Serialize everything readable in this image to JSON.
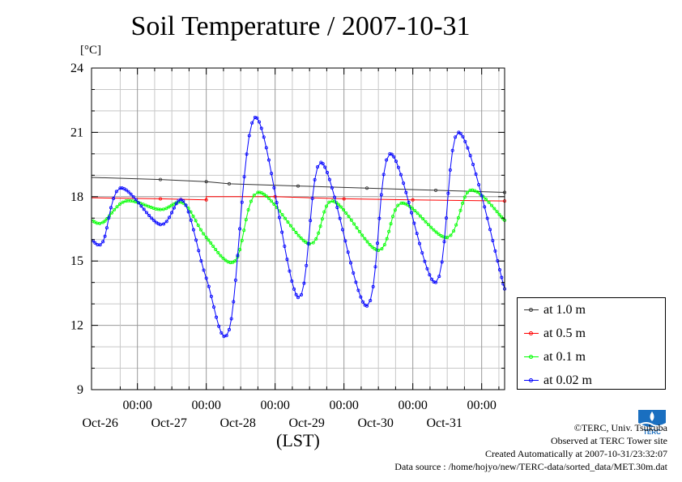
{
  "chart_data": {
    "type": "line",
    "title": "Soil Temperature / 2007-10-31",
    "ylabel": "[°C]",
    "xlabel": "(LST)",
    "ylim": [
      9,
      24
    ],
    "yticks": [
      9,
      12,
      15,
      18,
      21,
      24
    ],
    "x_range_days": [
      "2007-10-25 08:00",
      "2007-10-31 08:00"
    ],
    "xticks": [
      {
        "date": "2007-10-26 00:00",
        "time": "00:00",
        "day": "Oct-26"
      },
      {
        "date": "2007-10-27 00:00",
        "time": "00:00",
        "day": "Oct-27"
      },
      {
        "date": "2007-10-28 00:00",
        "time": "00:00",
        "day": "Oct-28"
      },
      {
        "date": "2007-10-29 00:00",
        "time": "00:00",
        "day": "Oct-29"
      },
      {
        "date": "2007-10-30 00:00",
        "time": "00:00",
        "day": "Oct-30"
      },
      {
        "date": "2007-10-31 00:00",
        "time": "00:00",
        "day": "Oct-31"
      }
    ],
    "grid": true,
    "legend_position": "right",
    "series": [
      {
        "name": "at 1.0 m",
        "color": "#333333",
        "points": [
          [
            "2007-10-25 08:00",
            18.9
          ],
          [
            "2007-10-26 08:00",
            18.8
          ],
          [
            "2007-10-27 00:00",
            18.7
          ],
          [
            "2007-10-27 08:00",
            18.6
          ],
          [
            "2007-10-28 08:00",
            18.5
          ],
          [
            "2007-10-29 08:00",
            18.4
          ],
          [
            "2007-10-30 08:00",
            18.3
          ],
          [
            "2007-10-31 08:00",
            18.2
          ]
        ]
      },
      {
        "name": "at 0.5 m",
        "color": "#ff0000",
        "points": [
          [
            "2007-10-25 08:00",
            17.95
          ],
          [
            "2007-10-26 08:00",
            17.9
          ],
          [
            "2007-10-27 00:00",
            17.85
          ],
          [
            "2007-10-27 00:01",
            18.0
          ],
          [
            "2007-10-28 00:00",
            18.0
          ],
          [
            "2007-10-29 00:00",
            17.9
          ],
          [
            "2007-10-30 00:00",
            17.85
          ],
          [
            "2007-10-31 08:00",
            17.8
          ]
        ]
      },
      {
        "name": "at 0.1 m",
        "color": "#00ff00",
        "points": [
          [
            "2007-10-25 08:00",
            16.9
          ],
          [
            "2007-10-25 12:00",
            16.8
          ],
          [
            "2007-10-25 20:00",
            17.8
          ],
          [
            "2007-10-26 08:00",
            17.4
          ],
          [
            "2007-10-26 16:00",
            17.7
          ],
          [
            "2007-10-27 00:00",
            16.1
          ],
          [
            "2007-10-27 10:00",
            15.0
          ],
          [
            "2007-10-27 18:00",
            18.2
          ],
          [
            "2007-10-28 12:00",
            15.8
          ],
          [
            "2007-10-28 20:00",
            17.8
          ],
          [
            "2007-10-29 12:00",
            15.5
          ],
          [
            "2007-10-29 20:00",
            17.7
          ],
          [
            "2007-10-30 12:00",
            16.1
          ],
          [
            "2007-10-30 20:00",
            18.3
          ],
          [
            "2007-10-31 08:00",
            16.9
          ]
        ]
      },
      {
        "name": "at 0.02 m",
        "color": "#0000ff",
        "points": [
          [
            "2007-10-25 08:00",
            16.0
          ],
          [
            "2007-10-25 12:00",
            15.9
          ],
          [
            "2007-10-25 18:00",
            18.4
          ],
          [
            "2007-10-26 08:00",
            16.7
          ],
          [
            "2007-10-26 16:00",
            17.8
          ],
          [
            "2007-10-27 00:00",
            14.2
          ],
          [
            "2007-10-27 08:00",
            11.8
          ],
          [
            "2007-10-27 17:00",
            21.7
          ],
          [
            "2007-10-28 08:00",
            13.3
          ],
          [
            "2007-10-28 16:00",
            19.6
          ],
          [
            "2007-10-29 08:00",
            12.9
          ],
          [
            "2007-10-29 16:00",
            20.0
          ],
          [
            "2007-10-30 08:00",
            14.0
          ],
          [
            "2007-10-30 16:00",
            21.0
          ],
          [
            "2007-10-31 08:00",
            13.7
          ]
        ]
      }
    ]
  },
  "legend": [
    {
      "label": "at 1.0 m",
      "color": "#333333"
    },
    {
      "label": "at 0.5 m",
      "color": "#ff0000"
    },
    {
      "label": "at 0.1 m",
      "color": "#00ff00"
    },
    {
      "label": "at 0.02 m",
      "color": "#0000ff"
    }
  ],
  "credits": {
    "copyright": "©TERC, Univ. Tsukuba",
    "observed": "Observed at TERC Tower site",
    "created": "Created Automatically at 2007-10-31/23:32:07",
    "source": "Data source : /home/hojyo/new/TERC-data/sorted_data/MET.30m.dat"
  },
  "logo": {
    "icon": "terc-logo",
    "text": "TERC",
    "color": "#1a6fc0"
  }
}
